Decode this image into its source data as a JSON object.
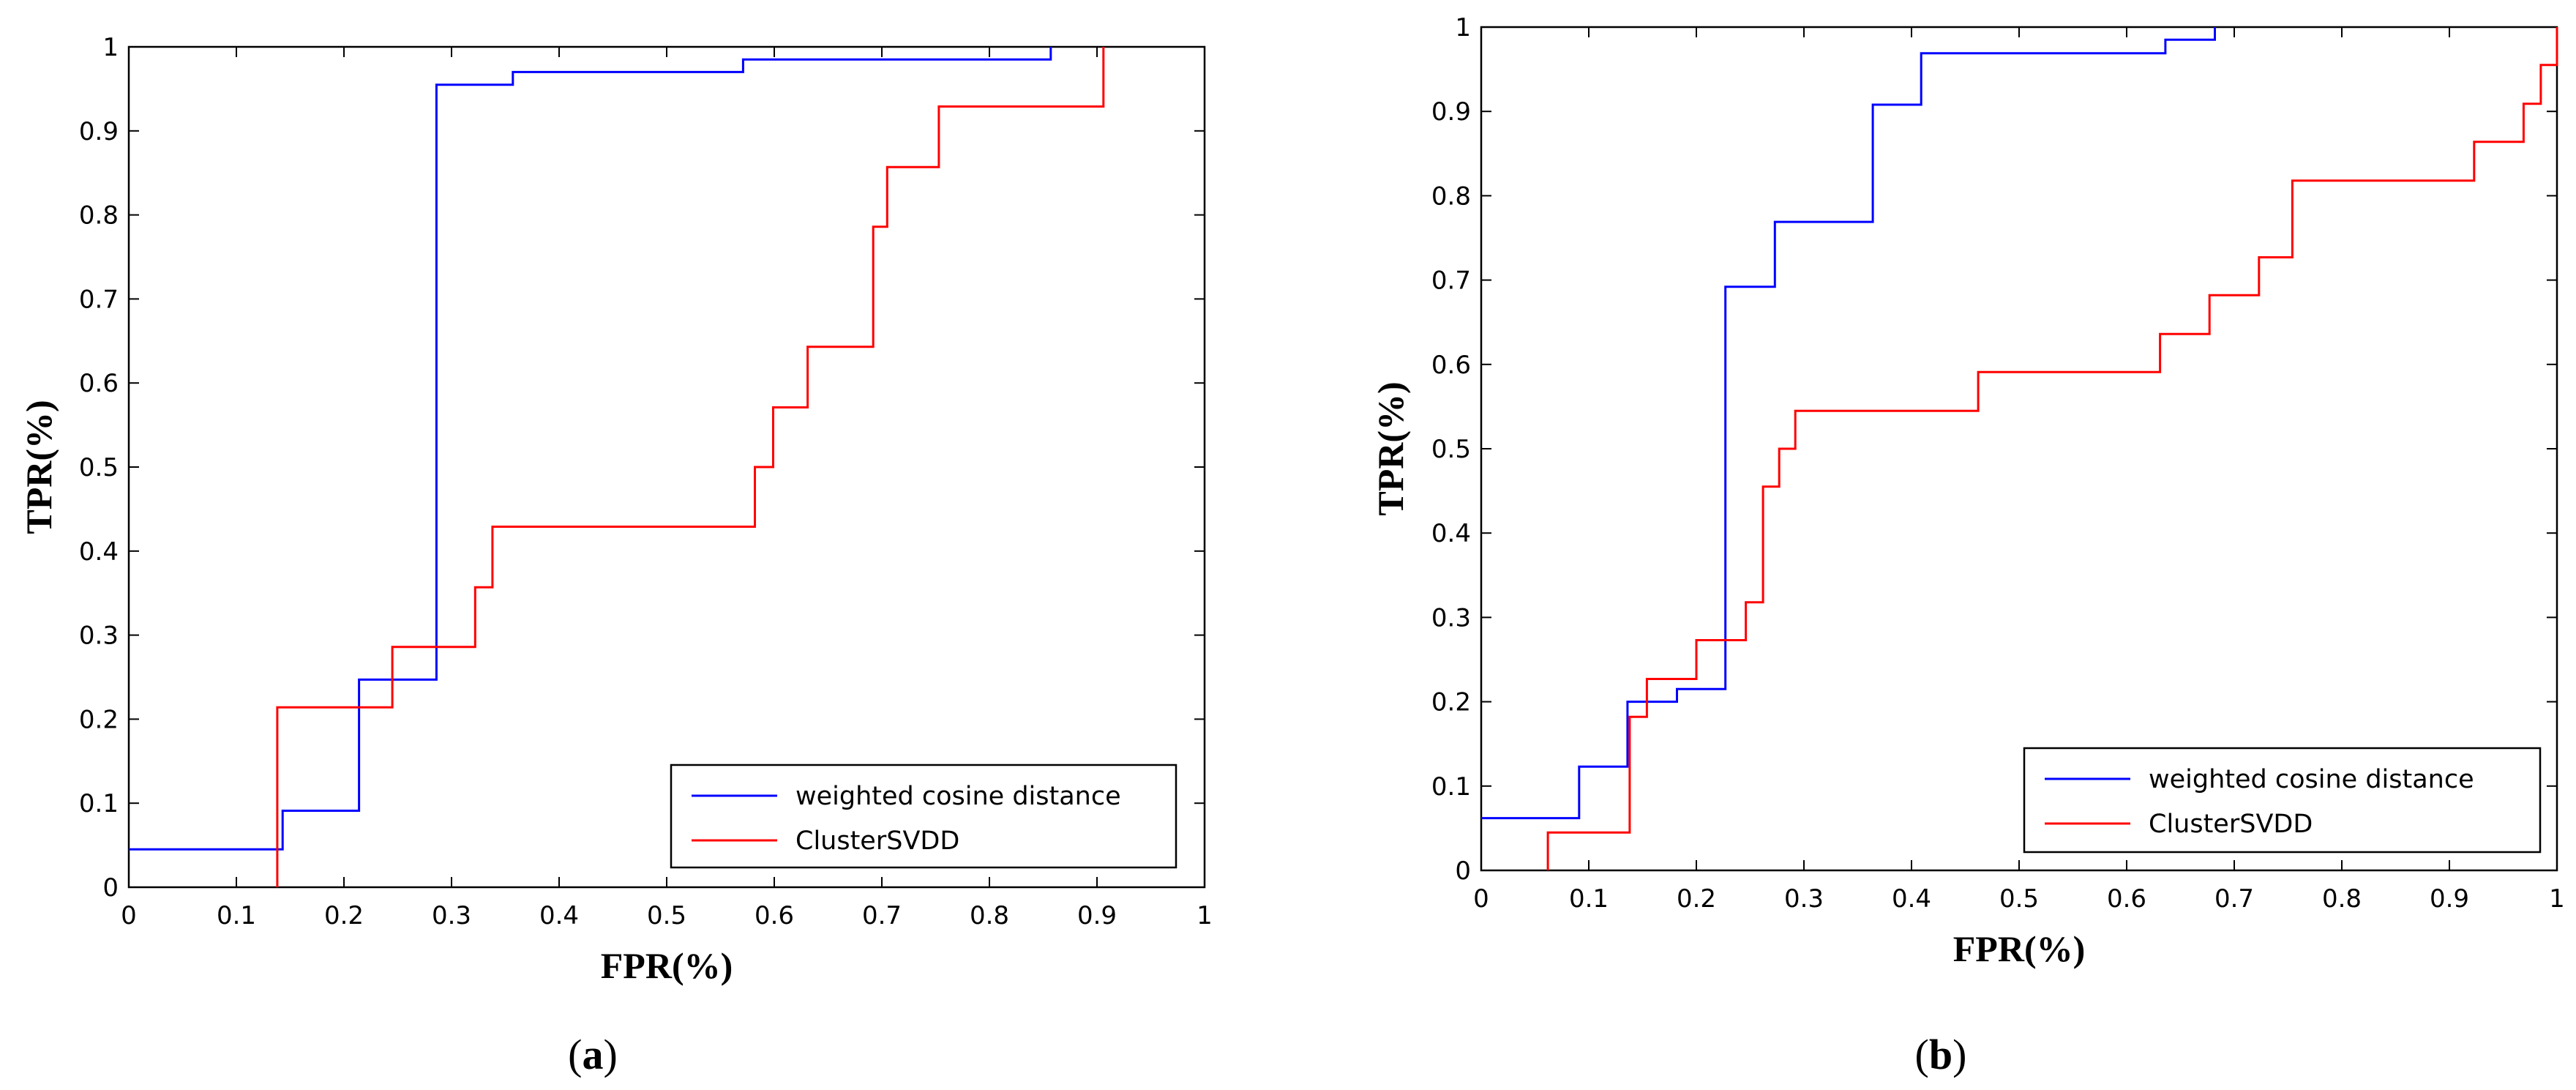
{
  "chart_data": [
    {
      "type": "line",
      "panel_label": "a",
      "title": "",
      "xlabel": "FPR(%)",
      "ylabel": "TPR(%)",
      "xlim": [
        0,
        1
      ],
      "ylim": [
        0,
        1
      ],
      "xticks": [
        "0",
        "0.1",
        "0.2",
        "0.3",
        "0.4",
        "0.5",
        "0.6",
        "0.7",
        "0.8",
        "0.9",
        "1"
      ],
      "yticks": [
        "0",
        "0.1",
        "0.2",
        "0.3",
        "0.4",
        "0.5",
        "0.6",
        "0.7",
        "0.8",
        "0.9",
        "1"
      ],
      "grid": false,
      "legend_position": "bottom-right",
      "series": [
        {
          "name": "weighted cosine distance",
          "color": "#0000ff",
          "x": [
            0,
            0.143,
            0.143,
            0.214,
            0.214,
            0.286,
            0.286,
            0.357,
            0.357,
            0.571,
            0.571,
            0.857,
            0.857
          ],
          "y": [
            0.045,
            0.045,
            0.091,
            0.091,
            0.247,
            0.247,
            0.955,
            0.955,
            0.97,
            0.97,
            0.985,
            0.985,
            1.0
          ]
        },
        {
          "name": "ClusterSVDD",
          "color": "#ff0000",
          "x": [
            0.138,
            0.138,
            0.245,
            0.245,
            0.322,
            0.322,
            0.338,
            0.338,
            0.582,
            0.582,
            0.599,
            0.599,
            0.631,
            0.631,
            0.692,
            0.692,
            0.705,
            0.705,
            0.753,
            0.753,
            0.906,
            0.906
          ],
          "y": [
            0,
            0.214,
            0.214,
            0.286,
            0.286,
            0.357,
            0.357,
            0.429,
            0.429,
            0.5,
            0.5,
            0.571,
            0.571,
            0.643,
            0.643,
            0.786,
            0.786,
            0.857,
            0.857,
            0.929,
            0.929,
            1.0
          ]
        }
      ]
    },
    {
      "type": "line",
      "panel_label": "b",
      "title": "",
      "xlabel": "FPR(%)",
      "ylabel": "TPR(%)",
      "xlim": [
        0,
        1
      ],
      "ylim": [
        0,
        1
      ],
      "xticks": [
        "0",
        "0.1",
        "0.2",
        "0.3",
        "0.4",
        "0.5",
        "0.6",
        "0.7",
        "0.8",
        "0.9",
        "1"
      ],
      "yticks": [
        "0",
        "0.1",
        "0.2",
        "0.3",
        "0.4",
        "0.5",
        "0.6",
        "0.7",
        "0.8",
        "0.9",
        "1"
      ],
      "grid": false,
      "legend_position": "bottom-right",
      "series": [
        {
          "name": "weighted cosine distance",
          "color": "#0000ff",
          "x": [
            0,
            0.091,
            0.091,
            0.136,
            0.136,
            0.182,
            0.182,
            0.227,
            0.227,
            0.273,
            0.273,
            0.364,
            0.364,
            0.409,
            0.409,
            0.636,
            0.636,
            0.682,
            0.682
          ],
          "y": [
            0.062,
            0.062,
            0.123,
            0.123,
            0.2,
            0.2,
            0.215,
            0.215,
            0.692,
            0.692,
            0.769,
            0.769,
            0.908,
            0.908,
            0.969,
            0.969,
            0.985,
            0.985,
            1.0
          ]
        },
        {
          "name": "ClusterSVDD",
          "color": "#ff0000",
          "x": [
            0.062,
            0.062,
            0.138,
            0.138,
            0.154,
            0.154,
            0.2,
            0.2,
            0.246,
            0.246,
            0.262,
            0.262,
            0.277,
            0.277,
            0.292,
            0.292,
            0.462,
            0.462,
            0.631,
            0.631,
            0.677,
            0.677,
            0.723,
            0.723,
            0.754,
            0.754,
            0.923,
            0.923,
            0.969,
            0.969,
            0.985,
            0.985,
            1.0,
            1.0
          ],
          "y": [
            0,
            0.045,
            0.045,
            0.182,
            0.182,
            0.227,
            0.227,
            0.273,
            0.273,
            0.318,
            0.318,
            0.455,
            0.455,
            0.5,
            0.5,
            0.545,
            0.545,
            0.591,
            0.591,
            0.636,
            0.636,
            0.682,
            0.682,
            0.727,
            0.727,
            0.818,
            0.818,
            0.864,
            0.864,
            0.909,
            0.909,
            0.955,
            0.955,
            1.0
          ]
        }
      ]
    }
  ]
}
